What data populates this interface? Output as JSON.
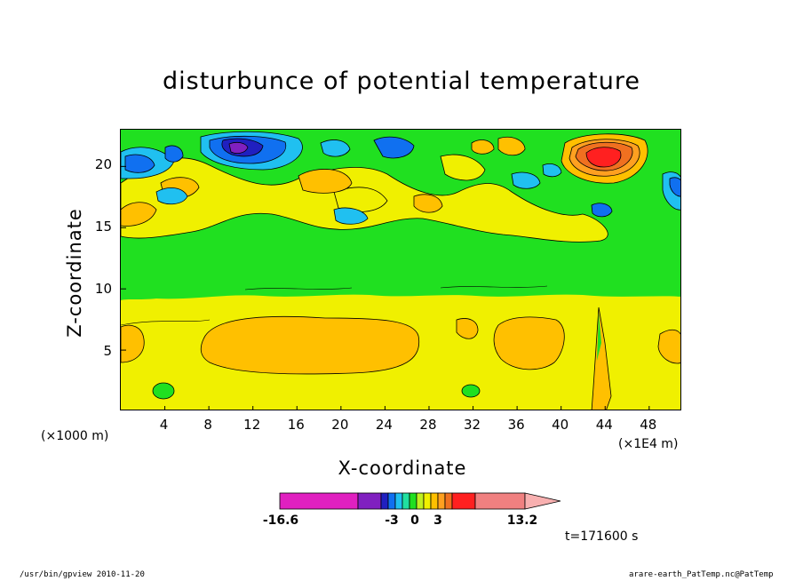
{
  "chart_data": {
    "type": "heatmap",
    "title": "disturbunce of potential temperature",
    "xlabel": "X-coordinate",
    "ylabel": "Z-coordinate",
    "x_unit": "(×1E4 m)",
    "y_unit": "(×1000 m)",
    "xlim": [
      0,
      51
    ],
    "ylim": [
      0,
      23
    ],
    "x_ticks": [
      "4",
      "8",
      "12",
      "16",
      "20",
      "24",
      "28",
      "32",
      "36",
      "40",
      "44",
      "48"
    ],
    "y_ticks": [
      "5",
      "10",
      "15",
      "20"
    ],
    "colorbar": {
      "min": -16.6,
      "max": 13.2,
      "tick_labels": [
        "-16.6",
        "-3",
        "0",
        "3",
        "13.2"
      ],
      "colors": [
        "#e020c0",
        "#8020c0",
        "#2020c0",
        "#1070f0",
        "#20c0f0",
        "#20e0a0",
        "#20e020",
        "#c0f020",
        "#f0f000",
        "#ffc000",
        "#ffa020",
        "#f07020",
        "#ff2020",
        "#f08080",
        "#f8b0b0"
      ]
    },
    "time_label": "t=171600 s",
    "regions": [
      {
        "level": "(-1, 1)",
        "color": "#20e020",
        "description": "background upper layer, z 9-23"
      },
      {
        "level": "(1, 2)",
        "color": "#f0f000",
        "description": "lower layer, z 0-9"
      },
      {
        "level": "(2, 3)",
        "color": "#ffc000",
        "description": "warm blobs near z 4-7"
      },
      {
        "level": "(> 10)",
        "color": "#ff2020",
        "description": "hot spot near x 43, z 20"
      },
      {
        "level": "(< -10)",
        "color": "#8020c0",
        "description": "cold spot near x 10, z 20"
      }
    ]
  },
  "footer": {
    "left": "/usr/bin/gpview   2010-11-20",
    "right": "arare-earth_PatTemp.nc@PatTemp"
  }
}
